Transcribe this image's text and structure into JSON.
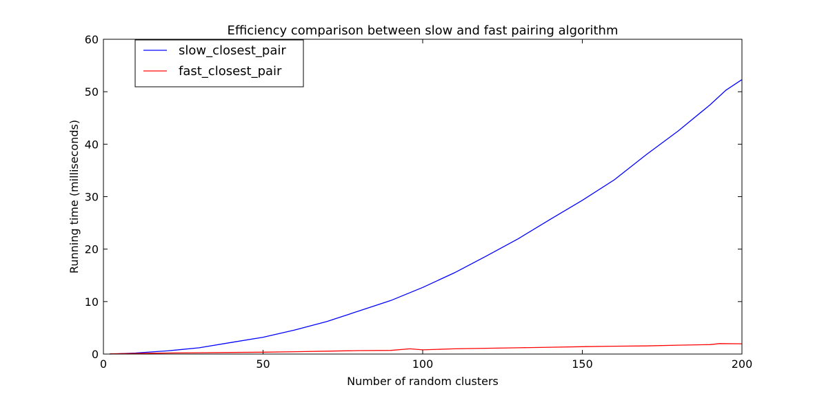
{
  "chart_data": {
    "type": "line",
    "title": "Efficiency comparison between slow and fast pairing algorithm",
    "xlabel": "Number of random clusters",
    "ylabel": "Running time (milliseconds)",
    "xlim": [
      0,
      200
    ],
    "ylim": [
      0,
      60
    ],
    "xticks": [
      0,
      50,
      100,
      150,
      200
    ],
    "yticks": [
      0,
      10,
      20,
      30,
      40,
      50,
      60
    ],
    "grid": false,
    "legend_position": "top-left",
    "series": [
      {
        "name": "slow_closest_pair",
        "color": "#0000ff",
        "x": [
          2,
          10,
          20,
          30,
          40,
          50,
          60,
          70,
          80,
          90,
          100,
          110,
          120,
          130,
          140,
          150,
          160,
          170,
          180,
          190,
          195,
          200
        ],
        "y": [
          0.0,
          0.2,
          0.6,
          1.2,
          2.2,
          3.2,
          4.6,
          6.2,
          8.2,
          10.2,
          12.7,
          15.5,
          18.7,
          22.0,
          25.7,
          29.3,
          33.2,
          38.0,
          42.5,
          47.5,
          50.3,
          52.3
        ]
      },
      {
        "name": "fast_closest_pair",
        "color": "#ff0000",
        "x": [
          2,
          10,
          20,
          30,
          40,
          50,
          60,
          70,
          80,
          90,
          96,
          100,
          110,
          120,
          130,
          140,
          150,
          160,
          170,
          180,
          190,
          193,
          200
        ],
        "y": [
          0.05,
          0.1,
          0.2,
          0.25,
          0.3,
          0.35,
          0.45,
          0.55,
          0.65,
          0.7,
          1.0,
          0.8,
          1.0,
          1.1,
          1.2,
          1.3,
          1.4,
          1.5,
          1.55,
          1.7,
          1.8,
          2.0,
          1.95
        ]
      }
    ]
  }
}
